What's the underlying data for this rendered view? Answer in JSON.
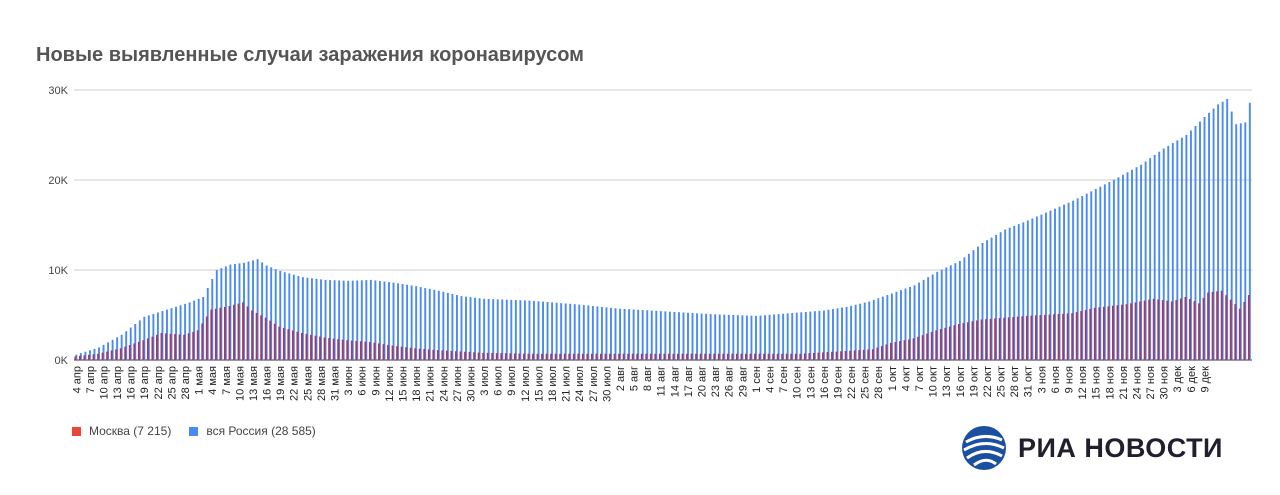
{
  "title": "Новые выявленные случаи заражения коронавирусом",
  "legend": [
    {
      "label": "Москва (7 215)",
      "color": "#e8453c"
    },
    {
      "label": "вся Россия (28 585)",
      "color": "#4a8af4"
    }
  ],
  "logo": {
    "text": "РИА НОВОСТИ",
    "icon": "ria-globe-icon"
  },
  "chart_data": {
    "type": "bar",
    "title": "Новые выявленные случаи заражения коронавирусом",
    "start_label": "4 апр",
    "y_ticks": [
      "0K",
      "10K",
      "20K",
      "30K"
    ],
    "ylim": [
      0,
      30000
    ],
    "grid": true,
    "legend_position": "bottom-left",
    "x_tick_labels": [
      "4 апр",
      "7 апр",
      "10 апр",
      "13 апр",
      "16 апр",
      "19 апр",
      "22 апр",
      "25 апр",
      "28 апр",
      "1 мая",
      "4 мая",
      "7 мая",
      "10 мая",
      "13 мая",
      "16 мая",
      "19 мая",
      "22 мая",
      "25 мая",
      "28 мая",
      "31 мая",
      "3 июн",
      "6 июн",
      "9 июн",
      "12 июн",
      "15 июн",
      "18 июн",
      "21 июн",
      "24 июн",
      "27 июн",
      "30 июн",
      "3 июл",
      "6 июл",
      "9 июл",
      "12 июл",
      "15 июл",
      "18 июл",
      "21 июл",
      "24 июл",
      "27 июл",
      "30 июл",
      "2 авг",
      "5 авг",
      "8 авг",
      "11 авг",
      "14 авг",
      "17 авг",
      "20 авг",
      "23 авг",
      "26 авг",
      "29 авг",
      "1 сен",
      "4 сен",
      "7 сен",
      "10 сен",
      "13 сен",
      "16 сен",
      "19 сен",
      "22 сен",
      "25 сен",
      "28 сен",
      "1 окт",
      "4 окт",
      "7 окт",
      "10 окт",
      "13 окт",
      "16 окт",
      "19 окт",
      "22 окт",
      "25 окт",
      "28 окт",
      "31 окт",
      "3 ноя",
      "6 ноя",
      "9 ноя",
      "12 ноя",
      "15 ноя",
      "18 ноя",
      "21 ноя",
      "24 ноя",
      "27 ноя",
      "30 ноя",
      "3 дек",
      "6 дек",
      "9 дек"
    ],
    "series": [
      {
        "name": "Москва (7 215)",
        "color": "#e8453c",
        "keyframes": [
          [
            0,
            400
          ],
          [
            5,
            700
          ],
          [
            10,
            1300
          ],
          [
            15,
            2200
          ],
          [
            19,
            3000
          ],
          [
            24,
            2800
          ],
          [
            27,
            3300
          ],
          [
            30,
            5600
          ],
          [
            34,
            6000
          ],
          [
            37,
            6400
          ],
          [
            39,
            5500
          ],
          [
            42,
            4700
          ],
          [
            45,
            3700
          ],
          [
            50,
            3000
          ],
          [
            55,
            2500
          ],
          [
            60,
            2200
          ],
          [
            65,
            2000
          ],
          [
            70,
            1600
          ],
          [
            75,
            1300
          ],
          [
            80,
            1100
          ],
          [
            90,
            800
          ],
          [
            100,
            700
          ],
          [
            120,
            700
          ],
          [
            140,
            700
          ],
          [
            150,
            700
          ],
          [
            160,
            700
          ],
          [
            170,
            1000
          ],
          [
            176,
            1200
          ],
          [
            180,
            1900
          ],
          [
            185,
            2400
          ],
          [
            190,
            3300
          ],
          [
            195,
            4000
          ],
          [
            200,
            4500
          ],
          [
            205,
            4700
          ],
          [
            210,
            4900
          ],
          [
            220,
            5200
          ],
          [
            225,
            5800
          ],
          [
            232,
            6200
          ],
          [
            238,
            6800
          ],
          [
            242,
            6500
          ],
          [
            245,
            7000
          ],
          [
            248,
            6300
          ],
          [
            250,
            7500
          ],
          [
            253,
            7700
          ],
          [
            255,
            6700
          ],
          [
            257,
            5700
          ],
          [
            259,
            7215
          ]
        ]
      },
      {
        "name": "вся Россия (28 585)",
        "color": "#4a8af4",
        "keyframes": [
          [
            0,
            600
          ],
          [
            5,
            1400
          ],
          [
            10,
            2800
          ],
          [
            15,
            4800
          ],
          [
            20,
            5600
          ],
          [
            25,
            6400
          ],
          [
            28,
            7000
          ],
          [
            31,
            10000
          ],
          [
            34,
            10600
          ],
          [
            37,
            10800
          ],
          [
            40,
            11200
          ],
          [
            42,
            10500
          ],
          [
            45,
            9900
          ],
          [
            50,
            9200
          ],
          [
            55,
            8900
          ],
          [
            60,
            8800
          ],
          [
            65,
            8900
          ],
          [
            70,
            8600
          ],
          [
            75,
            8200
          ],
          [
            80,
            7700
          ],
          [
            85,
            7100
          ],
          [
            90,
            6800
          ],
          [
            100,
            6600
          ],
          [
            110,
            6200
          ],
          [
            120,
            5700
          ],
          [
            130,
            5400
          ],
          [
            140,
            5100
          ],
          [
            150,
            4900
          ],
          [
            160,
            5300
          ],
          [
            165,
            5500
          ],
          [
            170,
            5900
          ],
          [
            175,
            6500
          ],
          [
            180,
            7400
          ],
          [
            185,
            8300
          ],
          [
            190,
            9800
          ],
          [
            195,
            11000
          ],
          [
            200,
            13000
          ],
          [
            205,
            14500
          ],
          [
            210,
            15500
          ],
          [
            215,
            16600
          ],
          [
            220,
            17700
          ],
          [
            225,
            19000
          ],
          [
            230,
            20300
          ],
          [
            235,
            21700
          ],
          [
            240,
            23500
          ],
          [
            245,
            25000
          ],
          [
            249,
            27000
          ],
          [
            252,
            28400
          ],
          [
            254,
            29000
          ],
          [
            256,
            26200
          ],
          [
            258,
            26400
          ],
          [
            259,
            28585
          ]
        ]
      }
    ]
  }
}
